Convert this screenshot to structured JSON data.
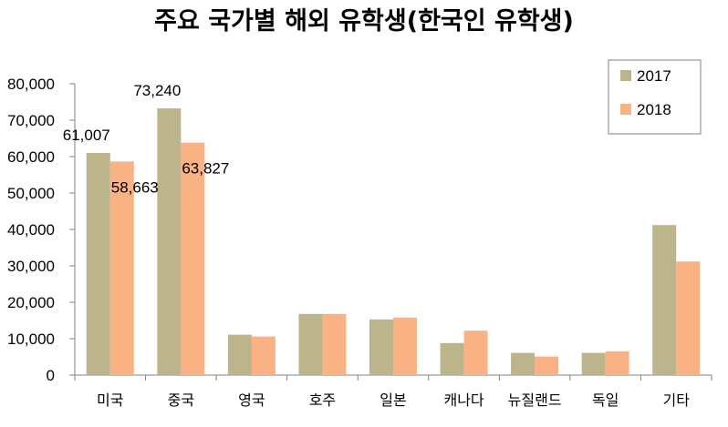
{
  "chart_data": {
    "type": "bar",
    "title": "주요 국가별 해외 유학생(한국인 유학생)",
    "xlabel": "",
    "ylabel": "",
    "categories": [
      "미국",
      "중국",
      "영국",
      "호주",
      "일본",
      "캐나다",
      "뉴질랜드",
      "독일",
      "기타"
    ],
    "series": [
      {
        "name": "2017",
        "color": "#bcb48a",
        "values": [
          61007,
          73240,
          11100,
          16800,
          15300,
          8800,
          6100,
          6100,
          41200
        ]
      },
      {
        "name": "2018",
        "color": "#f9b283",
        "values": [
          58663,
          63827,
          10600,
          16800,
          15800,
          12200,
          5100,
          6500,
          31200
        ]
      }
    ],
    "data_labels": [
      {
        "series": 0,
        "index": 0,
        "text": "61,007"
      },
      {
        "series": 1,
        "index": 0,
        "text": "58,663"
      },
      {
        "series": 0,
        "index": 1,
        "text": "73,240"
      },
      {
        "series": 1,
        "index": 1,
        "text": "63,827"
      }
    ],
    "ylim": [
      0,
      80000
    ],
    "yticks": [
      0,
      10000,
      20000,
      30000,
      40000,
      50000,
      60000,
      70000,
      80000
    ],
    "ytick_labels": [
      "0",
      "10,000",
      "20,000",
      "30,000",
      "40,000",
      "50,000",
      "60,000",
      "70,000",
      "80,000"
    ],
    "grid": false,
    "legend_position": "top-right"
  }
}
